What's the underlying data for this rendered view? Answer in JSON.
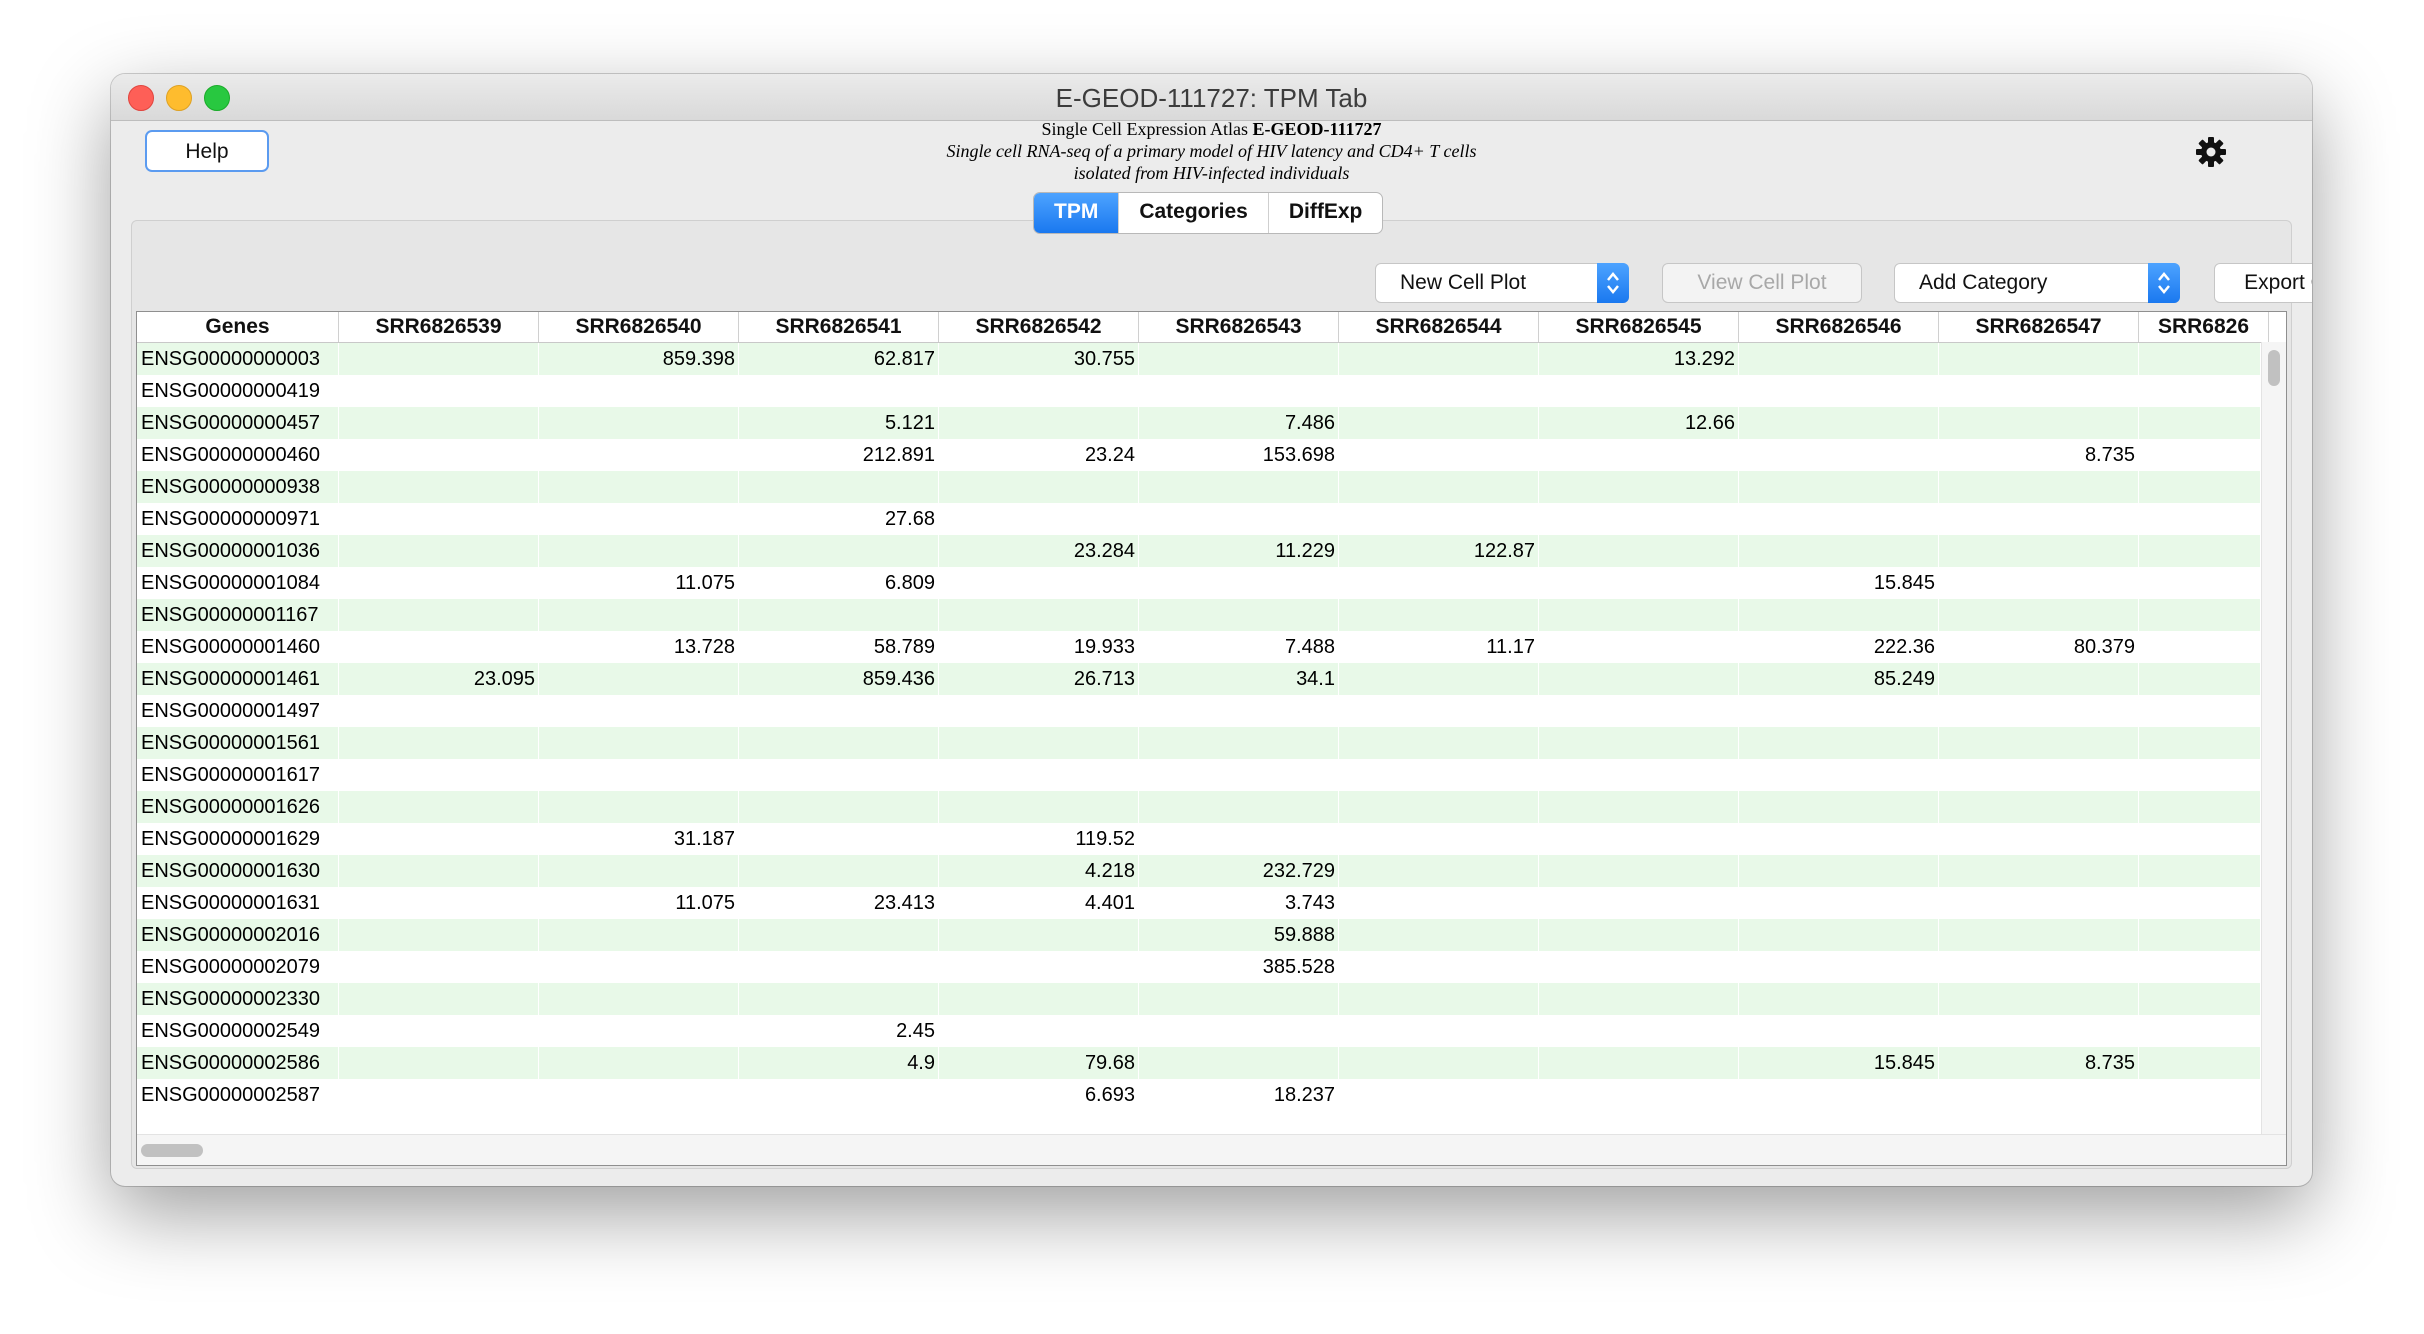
{
  "window": {
    "title": "E-GEOD-111727: TPM Tab"
  },
  "header": {
    "help_label": "Help",
    "line1_prefix": "Single Cell Expression Atlas ",
    "line1_accession": "E-GEOD-111727",
    "line2": "Single cell RNA-seq of a primary model of HIV latency and CD4+ T cells",
    "line3": "isolated from HIV-infected individuals",
    "settings_icon": "gear-icon"
  },
  "tabs": [
    {
      "label": "TPM",
      "active": true
    },
    {
      "label": "Categories",
      "active": false
    },
    {
      "label": "DiffExp",
      "active": false
    }
  ],
  "toolbar": {
    "new_cell_plot": "New Cell Plot",
    "view_cell_plot": "View Cell Plot",
    "add_category": "Add Category",
    "export_csv": "Export CSV"
  },
  "colors": {
    "accent": "#1a78ef",
    "row_stripe": "#e8f9e8"
  },
  "table": {
    "columns": [
      "Genes",
      "SRR6826539",
      "SRR6826540",
      "SRR6826541",
      "SRR6826542",
      "SRR6826543",
      "SRR6826544",
      "SRR6826545",
      "SRR6826546",
      "SRR6826547",
      "SRR6826"
    ],
    "rows": [
      [
        "ENSG00000000003",
        "",
        "859.398",
        "62.817",
        "30.755",
        "",
        "",
        "13.292",
        "",
        "",
        ""
      ],
      [
        "ENSG00000000419",
        "",
        "",
        "",
        "",
        "",
        "",
        "",
        "",
        "",
        ""
      ],
      [
        "ENSG00000000457",
        "",
        "",
        "5.121",
        "",
        "7.486",
        "",
        "12.66",
        "",
        "",
        ""
      ],
      [
        "ENSG00000000460",
        "",
        "",
        "212.891",
        "23.24",
        "153.698",
        "",
        "",
        "",
        "8.735",
        ""
      ],
      [
        "ENSG00000000938",
        "",
        "",
        "",
        "",
        "",
        "",
        "",
        "",
        "",
        ""
      ],
      [
        "ENSG00000000971",
        "",
        "",
        "27.68",
        "",
        "",
        "",
        "",
        "",
        "",
        ""
      ],
      [
        "ENSG00000001036",
        "",
        "",
        "",
        "23.284",
        "11.229",
        "122.87",
        "",
        "",
        "",
        ""
      ],
      [
        "ENSG00000001084",
        "",
        "11.075",
        "6.809",
        "",
        "",
        "",
        "",
        "15.845",
        "",
        ""
      ],
      [
        "ENSG00000001167",
        "",
        "",
        "",
        "",
        "",
        "",
        "",
        "",
        "",
        ""
      ],
      [
        "ENSG00000001460",
        "",
        "13.728",
        "58.789",
        "19.933",
        "7.488",
        "11.17",
        "",
        "222.36",
        "80.379",
        ""
      ],
      [
        "ENSG00000001461",
        "23.095",
        "",
        "859.436",
        "26.713",
        "34.1",
        "",
        "",
        "85.249",
        "",
        ""
      ],
      [
        "ENSG00000001497",
        "",
        "",
        "",
        "",
        "",
        "",
        "",
        "",
        "",
        ""
      ],
      [
        "ENSG00000001561",
        "",
        "",
        "",
        "",
        "",
        "",
        "",
        "",
        "",
        ""
      ],
      [
        "ENSG00000001617",
        "",
        "",
        "",
        "",
        "",
        "",
        "",
        "",
        "",
        ""
      ],
      [
        "ENSG00000001626",
        "",
        "",
        "",
        "",
        "",
        "",
        "",
        "",
        "",
        ""
      ],
      [
        "ENSG00000001629",
        "",
        "31.187",
        "",
        "119.52",
        "",
        "",
        "",
        "",
        "",
        ""
      ],
      [
        "ENSG00000001630",
        "",
        "",
        "",
        "4.218",
        "232.729",
        "",
        "",
        "",
        "",
        ""
      ],
      [
        "ENSG00000001631",
        "",
        "11.075",
        "23.413",
        "4.401",
        "3.743",
        "",
        "",
        "",
        "",
        ""
      ],
      [
        "ENSG00000002016",
        "",
        "",
        "",
        "",
        "59.888",
        "",
        "",
        "",
        "",
        ""
      ],
      [
        "ENSG00000002079",
        "",
        "",
        "",
        "",
        "385.528",
        "",
        "",
        "",
        "",
        ""
      ],
      [
        "ENSG00000002330",
        "",
        "",
        "",
        "",
        "",
        "",
        "",
        "",
        "",
        ""
      ],
      [
        "ENSG00000002549",
        "",
        "",
        "2.45",
        "",
        "",
        "",
        "",
        "",
        "",
        ""
      ],
      [
        "ENSG00000002586",
        "",
        "",
        "4.9",
        "79.68",
        "",
        "",
        "",
        "15.845",
        "8.735",
        ""
      ],
      [
        "ENSG00000002587",
        "",
        "",
        "",
        "6.693",
        "18.237",
        "",
        "",
        "",
        "",
        ""
      ]
    ]
  }
}
